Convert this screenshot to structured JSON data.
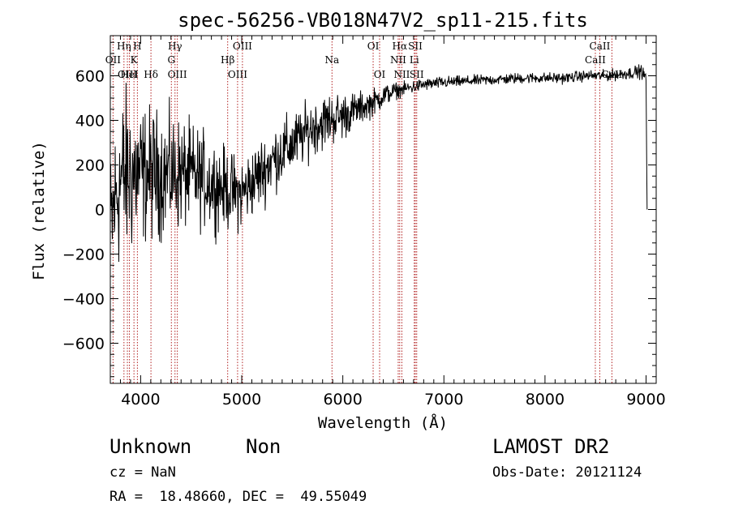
{
  "chart_data": {
    "type": "line",
    "title": "spec-56256-VB018N47V2_sp11-215.fits",
    "xlabel": "Wavelength (Å)",
    "ylabel": "Flux (relative)",
    "xlim": [
      3700,
      9100
    ],
    "ylim": [
      -780,
      780
    ],
    "xticks": [
      4000,
      5000,
      6000,
      7000,
      8000,
      9000
    ],
    "yticks": [
      -600,
      -400,
      -200,
      0,
      200,
      400,
      600
    ],
    "x_minor_step": 100,
    "y_minor_step": 50,
    "grid": false,
    "series": [
      {
        "x": [
          3700,
          3750,
          3800,
          3850,
          3900,
          3950,
          4000,
          4100,
          4200,
          4300,
          4400,
          4500,
          4600,
          4700,
          4800,
          4900,
          5000,
          5100,
          5200,
          5300,
          5400,
          5500,
          5600,
          5700,
          5800,
          5900,
          6000,
          6100,
          6200,
          6300,
          6400,
          6500,
          6600,
          6700,
          6800,
          6900,
          7000,
          7200,
          7400,
          7600,
          7800,
          8000,
          8200,
          8400,
          8600,
          8800,
          8950,
          9000,
          9010
        ],
        "y": [
          -100,
          50,
          130,
          150,
          160,
          160,
          160,
          160,
          160,
          160,
          160,
          150,
          140,
          120,
          100,
          80,
          70,
          120,
          170,
          220,
          260,
          290,
          330,
          370,
          390,
          410,
          420,
          440,
          460,
          480,
          510,
          530,
          540,
          550,
          560,
          565,
          570,
          575,
          580,
          585,
          590,
          590,
          590,
          600,
          600,
          610,
          620,
          590,
          0
        ],
        "noise": [
          230,
          230,
          250,
          250,
          240,
          220,
          200,
          190,
          180,
          170,
          160,
          150,
          140,
          130,
          120,
          110,
          105,
          100,
          100,
          95,
          95,
          90,
          85,
          80,
          80,
          75,
          70,
          55,
          45,
          40,
          35,
          25,
          20,
          20,
          18,
          18,
          18,
          16,
          16,
          16,
          16,
          16,
          16,
          16,
          16,
          18,
          20,
          20,
          0
        ]
      }
    ],
    "lines": [
      {
        "label": "Hη",
        "x": 3835,
        "row": 1
      },
      {
        "label": "H",
        "x": 3968,
        "row": 1
      },
      {
        "label": "OII",
        "x": 3727,
        "row": 2
      },
      {
        "label": "K",
        "x": 3934,
        "row": 2
      },
      {
        "label": "OIII",
        "x": 3869,
        "row": 3
      },
      {
        "label": "HeI",
        "x": 3889,
        "row": 3
      },
      {
        "label": "Hδ",
        "x": 4102,
        "row": 3
      },
      {
        "label": "Hγ",
        "x": 4340,
        "row": 1
      },
      {
        "label": "G",
        "x": 4304,
        "row": 2
      },
      {
        "label": "OIII",
        "x": 4363,
        "row": 3
      },
      {
        "label": "OIII",
        "x": 5007,
        "row": 1
      },
      {
        "label": "Hβ",
        "x": 4861,
        "row": 2
      },
      {
        "label": "OIII",
        "x": 4959,
        "row": 3
      },
      {
        "label": "Na",
        "x": 5893,
        "row": 2
      },
      {
        "label": "OI",
        "x": 6300,
        "row": 1
      },
      {
        "label": "OI",
        "x": 6364,
        "row": 3
      },
      {
        "label": "Hα",
        "x": 6563,
        "row": 1
      },
      {
        "label": "SII",
        "x": 6717,
        "row": 1
      },
      {
        "label": "NII",
        "x": 6548,
        "row": 2
      },
      {
        "label": "Li",
        "x": 6707,
        "row": 2
      },
      {
        "label": "NII",
        "x": 6584,
        "row": 3
      },
      {
        "label": "SII",
        "x": 6731,
        "row": 3
      },
      {
        "label": "CaII",
        "x": 8542,
        "row": 1
      },
      {
        "label": "CaII",
        "x": 8498,
        "row": 2
      },
      {
        "label": "CaII",
        "x": 8662,
        "row": 3
      }
    ]
  },
  "info": {
    "class_label": "Unknown",
    "subclass_label": "Non",
    "survey": "LAMOST DR2",
    "cz": "cz = NaN",
    "obs_date": "Obs-Date: 20121124",
    "coords": "RA =  18.48660, DEC =  49.55049"
  },
  "colors": {
    "spectrum": "#000000",
    "line_markers": "#b22222"
  }
}
